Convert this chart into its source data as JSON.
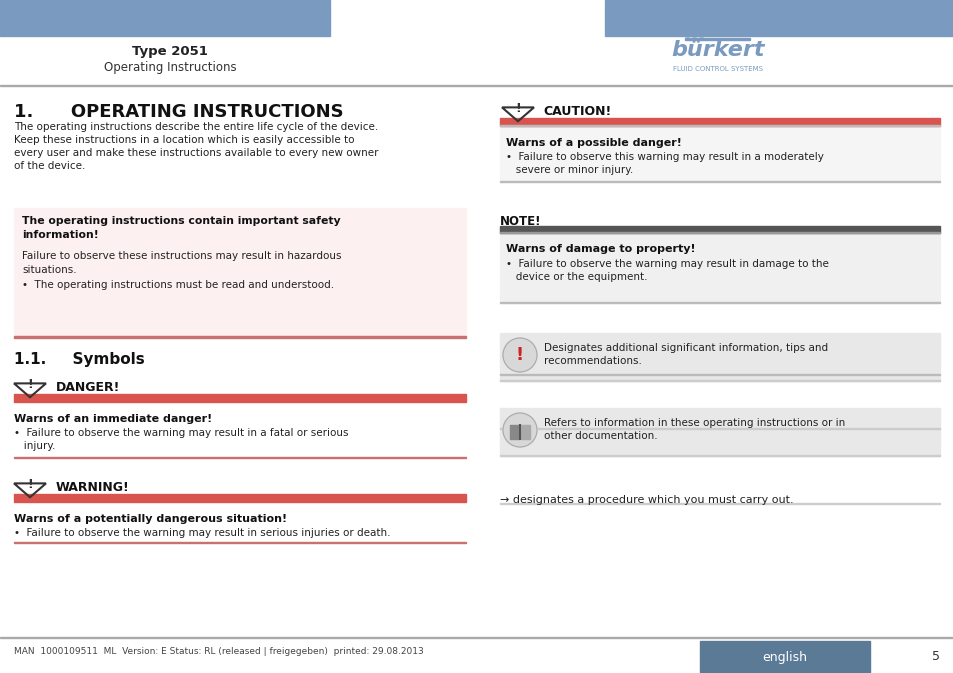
{
  "bg_color": "#ffffff",
  "header_bar_color": "#7a9bbf",
  "header_title": "Type 2051",
  "header_subtitle": "Operating Instructions",
  "footer_line_text": "MAN  1000109511  ML  Version: E Status: RL (released | freigegeben)  printed: 29.08.2013",
  "footer_english_box_color": "#5a7a96",
  "footer_english_text": "english",
  "footer_page_num": "5",
  "section1_title": "1.      OPERATING INSTRUCTIONS",
  "section1_body_lines": [
    "The operating instructions describe the entire life cycle of the device.",
    "Keep these instructions in a location which is easily accessible to",
    "every user and make these instructions available to every new owner",
    "of the device."
  ],
  "info_box_bg": "#fdf0f0",
  "info_box_bottom_line": "#c97070",
  "info_box_title": "The operating instructions contain important safety\ninformation!",
  "info_box_body1": "Failure to observe these instructions may result in hazardous\nsituations.",
  "info_box_bullet": "•  The operating instructions must be read and understood.",
  "section11_title": "1.1.     Symbols",
  "danger_label": "DANGER!",
  "danger_bar_color": "#d9534f",
  "danger_title": "Warns of an immediate danger!",
  "danger_body1": "•  Failure to observe the warning may result in a fatal or serious",
  "danger_body2": "   injury.",
  "warning_label": "WARNING!",
  "warning_bar_color": "#d9534f",
  "warning_title": "Warns of a potentially dangerous situation!",
  "warning_body": "•  Failure to observe the warning may result in serious injuries or death.",
  "caution_label": "CAUTION!",
  "caution_bar_color": "#d9534f",
  "caution_title": "Warns of a possible danger!",
  "caution_body1": "•  Failure to observe this warning may result in a moderately",
  "caution_body2": "   severe or minor injury.",
  "note_label": "NOTE!",
  "note_bar_color": "#555555",
  "note_title": "Warns of damage to property!",
  "note_body1": "•  Failure to observe the warning may result in damage to the",
  "note_body2": "   device or the equipment.",
  "info_icon_text1": "Designates additional significant information, tips and",
  "info_icon_text2": "recommendations.",
  "book_icon_text1": "Refers to information in these operating instructions or in",
  "book_icon_text2": "other documentation.",
  "arrow_text": "→ designates a procedure which you must carry out.",
  "text_color": "#1a1a1a",
  "gray_box_bg": "#e8e8e8",
  "burkert_color": "#7a9bbf"
}
